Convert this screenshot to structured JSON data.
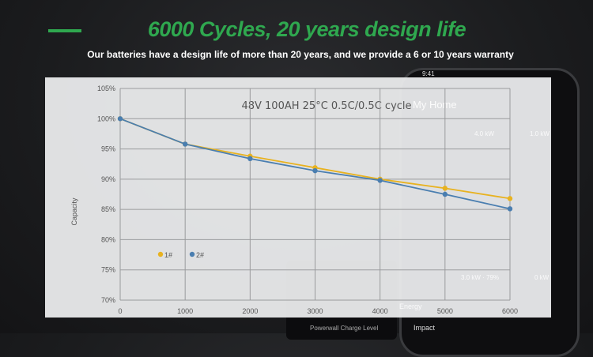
{
  "header": {
    "title": "6000 Cycles, 20 years design life",
    "subtitle": "Our batteries have a design life of more than 20 years, and we provide a 6 or 10 years  warranty",
    "accent": "#2fa84f"
  },
  "phone": {
    "time": "9:41",
    "home": "My Home",
    "solar": "4.0 kW",
    "grid": "1.0 kW",
    "battery": "3.0 kW · 79%",
    "load": "0 kW",
    "energy": "Energy",
    "impact": "Impact",
    "charge": "Powerwall Charge Level"
  },
  "chart_data": {
    "type": "line",
    "title": "48V 100AH 25°C 0.5C/0.5C cycle",
    "xlabel": "",
    "ylabel": "Capacity",
    "x": [
      0,
      1000,
      2000,
      3000,
      4000,
      5000,
      6000
    ],
    "xlim": [
      0,
      6000
    ],
    "ylim": [
      70,
      105
    ],
    "yticks": [
      "70%",
      "75%",
      "80%",
      "85%",
      "90%",
      "95%",
      "100%",
      "105%"
    ],
    "xticks": [
      "0",
      "1000",
      "2000",
      "3000",
      "4000",
      "5000",
      "6000"
    ],
    "grid": true,
    "legend": "bottom-left",
    "series": [
      {
        "name": "1#",
        "color": "#e8b21f",
        "values": [
          100,
          95.8,
          93.8,
          91.9,
          90.0,
          88.5,
          86.8
        ]
      },
      {
        "name": "2#",
        "color": "#4a7eb0",
        "values": [
          100,
          95.8,
          93.4,
          91.4,
          89.8,
          87.5,
          85.1
        ]
      }
    ]
  }
}
